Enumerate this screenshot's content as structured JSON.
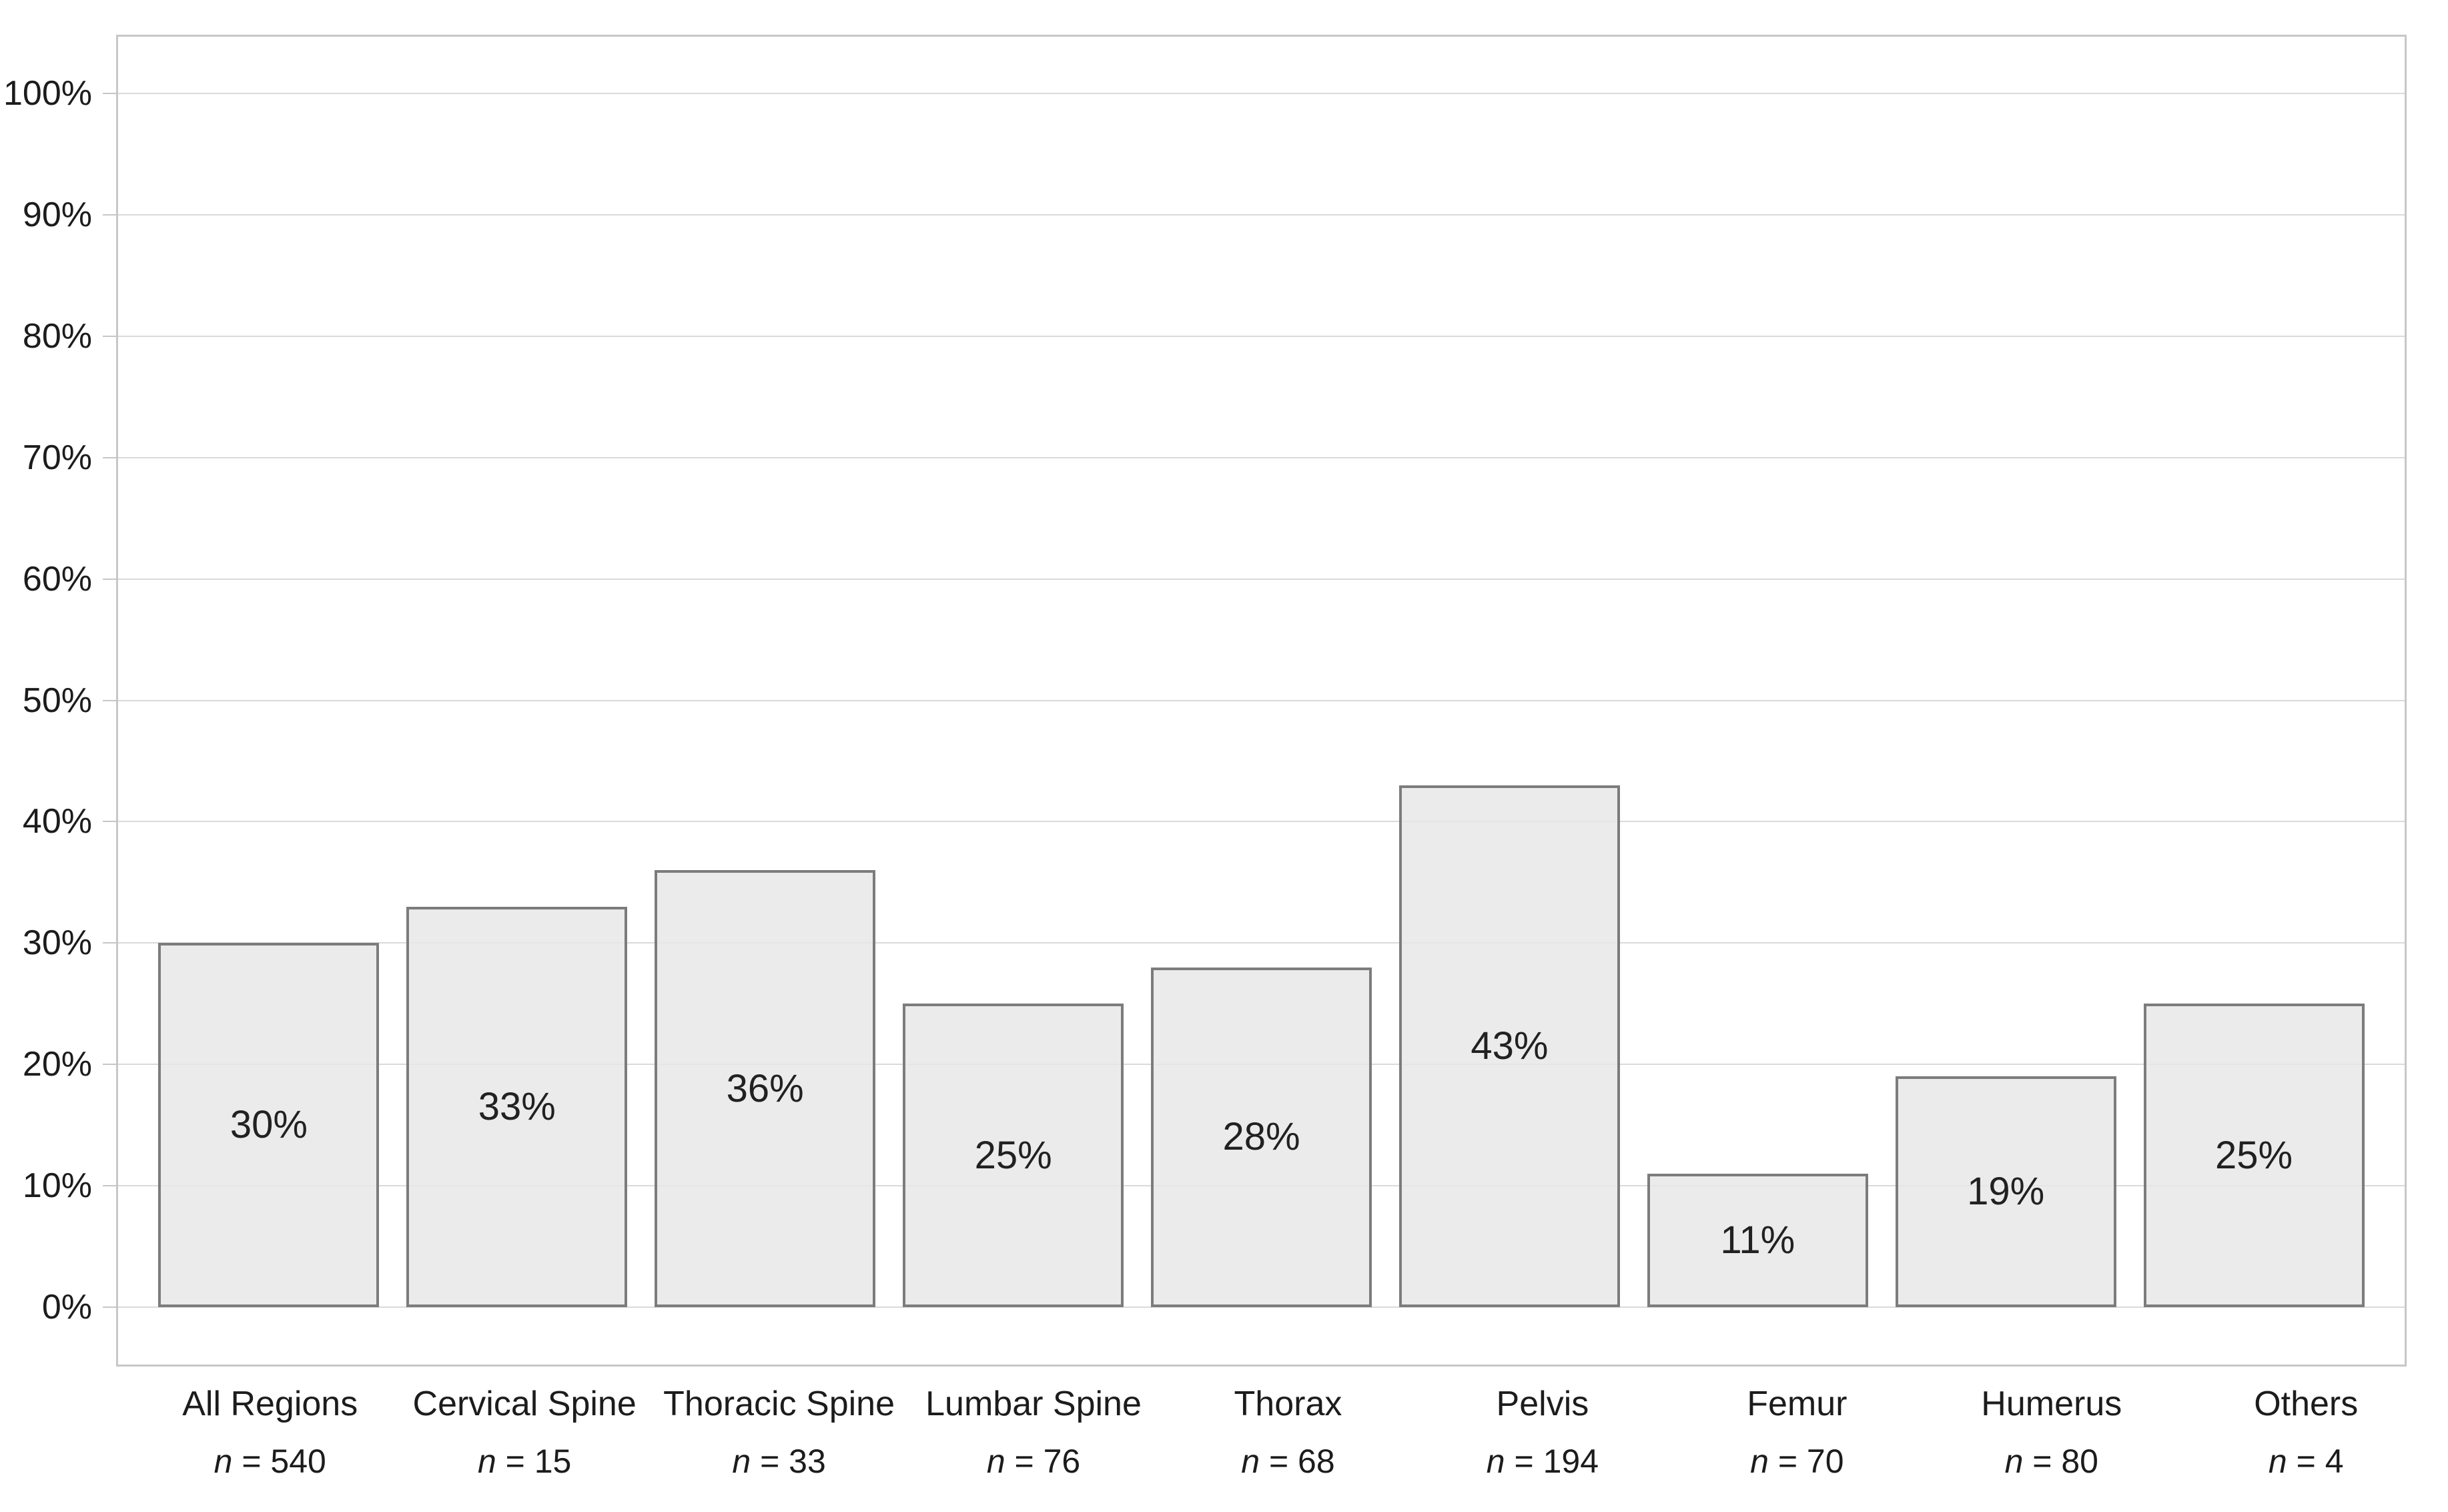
{
  "chart_data": {
    "type": "bar",
    "title": "",
    "xlabel": "",
    "ylabel": "",
    "categories": [
      "All Regions",
      "Cervical Spine",
      "Thoracic Spine",
      "Lumbar Spine",
      "Thorax",
      "Pelvis",
      "Femur",
      "Humerus",
      "Others"
    ],
    "values": [
      30,
      33,
      36,
      25,
      28,
      43,
      11,
      19,
      25
    ],
    "bar_labels": [
      "30%",
      "33%",
      "36%",
      "25%",
      "28%",
      "43%",
      "11%",
      "19%",
      "25%"
    ],
    "sample_sizes": [
      540,
      15,
      33,
      76,
      68,
      194,
      70,
      80,
      4
    ],
    "n_symbol": "n",
    "n_joiner": "=",
    "y_axis": {
      "min": 0,
      "max": 100,
      "tick_values": [
        0,
        10,
        20,
        30,
        40,
        50,
        60,
        70,
        80,
        90,
        100
      ],
      "tick_labels": [
        "0%",
        "10%",
        "20%",
        "30%",
        "40%",
        "50%",
        "60%",
        "70%",
        "80%",
        "90%",
        "100%"
      ],
      "grid": true
    },
    "legend": null,
    "colors": {
      "bar_fill": "#e7e7e7",
      "bar_border": "#7c7c7c",
      "gridline": "#dadada",
      "plot_border": "#c7c7c7",
      "tick": "#c6c6c6",
      "text": "#1c1c1c"
    }
  }
}
